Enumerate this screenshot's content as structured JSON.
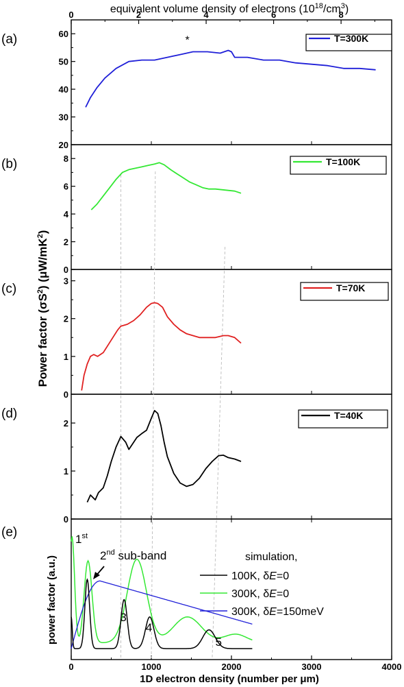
{
  "chart_data": {
    "type": "line",
    "shared_x": {
      "bottom_label_pre": "1D electron density (number per ",
      "bottom_label_unit": "μ",
      "bottom_label_post": "m)",
      "bottom_range": [
        0,
        4000
      ],
      "bottom_ticks": [
        "0",
        "1000",
        "2000",
        "3000",
        "4000"
      ],
      "top_label_pre": "equivalent volume density of electrons (10",
      "top_label_sup1": "18",
      "top_label_mid": "/cm",
      "top_label_sup2": "3",
      "top_label_post": ")",
      "top_range": [
        0,
        9.5
      ],
      "top_ticks": [
        "0",
        "2",
        "4",
        "6",
        "8"
      ]
    },
    "shared_y_label_pre": "Power factor (",
    "shared_y_label_sigma": "σS",
    "shared_y_label_sup": "2",
    "shared_y_label_mid": ") (",
    "shared_y_label_unit": "μW/mK",
    "shared_y_label_sup2": "2",
    "shared_y_label_post": ")",
    "panels": [
      {
        "id": "a",
        "panel_label": "(a)",
        "ylim": [
          20,
          65
        ],
        "yticks": [
          "20",
          "30",
          "40",
          "50",
          "60"
        ],
        "series": [
          {
            "name": "T=300K",
            "color": "#1f1fd8",
            "x": [
              180,
              240,
              320,
              420,
              560,
              720,
              880,
              1040,
              1200,
              1360,
              1520,
              1700,
              1860,
              1960,
              2000,
              2040,
              2200,
              2400,
              2600,
              2800,
              3000,
              3200,
              3400,
              3600,
              3800
            ],
            "y": [
              33.5,
              37,
              40.5,
              44,
              47.5,
              50,
              50.5,
              50.5,
              51.5,
              52.5,
              53.5,
              53.5,
              53,
              54,
              53.5,
              51.5,
              51.5,
              50.5,
              50.5,
              49.5,
              49,
              48.5,
              47.5,
              47.5,
              47
            ]
          }
        ],
        "annotation": "*"
      },
      {
        "id": "b",
        "panel_label": "(b)",
        "ylim": [
          0,
          9
        ],
        "yticks": [
          "0",
          "2",
          "4",
          "6",
          "8"
        ],
        "series": [
          {
            "name": "T=100K",
            "color": "#33e833",
            "x": [
              250,
              320,
              400,
              480,
              560,
              640,
              720,
              800,
              880,
              960,
              1040,
              1100,
              1160,
              1240,
              1320,
              1400,
              1480,
              1560,
              1640,
              1720,
              1800,
              1880,
              1960,
              2040,
              2120
            ],
            "y": [
              4.3,
              4.7,
              5.3,
              5.9,
              6.5,
              7.0,
              7.2,
              7.3,
              7.4,
              7.5,
              7.6,
              7.7,
              7.55,
              7.2,
              6.9,
              6.6,
              6.3,
              6.1,
              5.9,
              5.8,
              5.8,
              5.75,
              5.7,
              5.65,
              5.5
            ]
          }
        ]
      },
      {
        "id": "c",
        "panel_label": "(c)",
        "ylim": [
          0,
          3.3
        ],
        "yticks": [
          "0",
          "1",
          "2",
          "3"
        ],
        "series": [
          {
            "name": "T=70K",
            "color": "#e02020",
            "x": [
              130,
              160,
              200,
              240,
              280,
              330,
              400,
              460,
              520,
              580,
              620,
              700,
              780,
              860,
              940,
              1000,
              1040,
              1080,
              1140,
              1200,
              1280,
              1360,
              1440,
              1520,
              1600,
              1700,
              1800,
              1900,
              1960,
              2040,
              2120
            ],
            "y": [
              0.1,
              0.5,
              0.8,
              1.0,
              1.05,
              1.0,
              1.1,
              1.3,
              1.5,
              1.7,
              1.8,
              1.85,
              1.95,
              2.1,
              2.3,
              2.4,
              2.42,
              2.4,
              2.3,
              2.05,
              1.85,
              1.7,
              1.6,
              1.55,
              1.5,
              1.5,
              1.5,
              1.55,
              1.55,
              1.5,
              1.35
            ]
          }
        ]
      },
      {
        "id": "d",
        "panel_label": "(d)",
        "ylim": [
          0,
          2.6
        ],
        "yticks": [
          "0",
          "1",
          "2"
        ],
        "series": [
          {
            "name": "T=40K",
            "color": "#000000",
            "x": [
              200,
              240,
              300,
              340,
              400,
              450,
              500,
              560,
              620,
              680,
              720,
              760,
              820,
              880,
              940,
              1000,
              1040,
              1080,
              1120,
              1160,
              1200,
              1280,
              1360,
              1440,
              1520,
              1600,
              1680,
              1760,
              1840,
              1900,
              1960,
              2040,
              2120
            ],
            "y": [
              0.35,
              0.5,
              0.4,
              0.55,
              0.65,
              0.9,
              1.2,
              1.5,
              1.72,
              1.6,
              1.45,
              1.55,
              1.7,
              1.78,
              1.85,
              2.1,
              2.26,
              2.2,
              1.95,
              1.6,
              1.3,
              0.95,
              0.75,
              0.68,
              0.72,
              0.85,
              1.05,
              1.2,
              1.32,
              1.33,
              1.28,
              1.25,
              1.2
            ]
          }
        ]
      },
      {
        "id": "e",
        "panel_label": "(e)",
        "ylabel": "power factor (a.u.)",
        "legend_title": "simulation,",
        "series": [
          {
            "name_pre": "100K, ",
            "name_de": "δ",
            "name_e": "E",
            "name_post": "=0",
            "color": "#000000"
          },
          {
            "name_pre": "300K, ",
            "name_de": "δ",
            "name_e": "E",
            "name_post": "=0",
            "color": "#33e833"
          },
          {
            "name_pre": "300K, ",
            "name_de": "δ",
            "name_e": "E",
            "name_post": "=150meV",
            "color": "#1f1fd8"
          }
        ],
        "annotations": {
          "first_num": "1",
          "first_sup": "st",
          "second_num": "2",
          "second_sup": "nd",
          "second_text": " sub-band",
          "peak3": "3",
          "peak4": "4",
          "peak5": "5"
        }
      }
    ]
  }
}
